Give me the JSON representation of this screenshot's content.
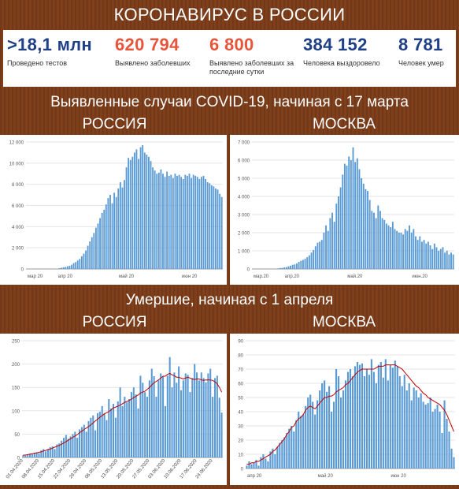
{
  "header": {
    "title": "КОРОНАВИРУС В РОССИИ"
  },
  "stats": [
    {
      "value": ">18,1 млн",
      "label": "Проведено тестов",
      "color": "#1f3f86"
    },
    {
      "value": "620 794",
      "label": "Выявлено заболевших",
      "color": "#e8553b"
    },
    {
      "value": "6 800",
      "label": "Выявлено заболевших за последние сутки",
      "color": "#e8553b"
    },
    {
      "value": "384 152",
      "label": "Человека выздоровело",
      "color": "#1f3f86"
    },
    {
      "value": "8 781",
      "label": "Человек умер",
      "color": "#1f3f86"
    }
  ],
  "section1": {
    "title": "Выявленные случаи COVID-19, начиная с 17 марта",
    "left": "РОССИЯ",
    "right": "МОСКВА"
  },
  "section2": {
    "title": "Умершие, начиная с 1 апреля",
    "left": "РОССИЯ",
    "right": "МОСКВА"
  },
  "colors": {
    "bar": "#5b9bd5",
    "line": "#c00000",
    "brown": "#7b3b18"
  },
  "chart_data": [
    {
      "id": "cases_russia",
      "type": "bar",
      "ylim": [
        0,
        12000
      ],
      "yticks": [
        "0",
        "2 000",
        "4 000",
        "6 000",
        "8 000",
        "10 000",
        "12 000"
      ],
      "xticks": [
        {
          "label": "мар 20",
          "i": 0
        },
        {
          "label": "апр 20",
          "i": 15
        },
        {
          "label": "май 20",
          "i": 45
        },
        {
          "label": "июн 20",
          "i": 76
        }
      ],
      "n": 97,
      "start": 0,
      "values": [
        0,
        0,
        0,
        0,
        0,
        0,
        0,
        0,
        0,
        0,
        0,
        0,
        0,
        0,
        0,
        0,
        70,
        120,
        160,
        190,
        250,
        300,
        400,
        550,
        650,
        800,
        950,
        1200,
        1450,
        1750,
        2200,
        2600,
        3000,
        3400,
        3900,
        4300,
        4800,
        5300,
        5600,
        6100,
        6700,
        7000,
        6200,
        7200,
        6800,
        7600,
        8200,
        7700,
        8400,
        9600,
        10500,
        10300,
        10600,
        11000,
        11300,
        10400,
        11500,
        11700,
        11000,
        10800,
        10600,
        10200,
        9600,
        9300,
        9000,
        9100,
        9400,
        9000,
        8700,
        9200,
        8800,
        8900,
        8600,
        9000,
        8800,
        8900,
        8700,
        8500,
        8900,
        8800,
        9000,
        8600,
        8900,
        8800,
        8700,
        8500,
        8700,
        8800,
        8500,
        8200,
        8100,
        7900,
        7800,
        7600,
        7500,
        7100,
        6800
      ]
    },
    {
      "id": "cases_moscow",
      "type": "bar",
      "ylim": [
        0,
        7000
      ],
      "yticks": [
        "0",
        "1 000",
        "2 000",
        "3 000",
        "4 000",
        "5 000",
        "6 000",
        "7 000"
      ],
      "xticks": [
        {
          "label": "мар.20",
          "i": 0
        },
        {
          "label": "апр.20",
          "i": 15
        },
        {
          "label": "май.20",
          "i": 45
        },
        {
          "label": "июн.20",
          "i": 76
        }
      ],
      "n": 97,
      "start": 0,
      "values": [
        0,
        0,
        0,
        0,
        0,
        0,
        0,
        0,
        0,
        0,
        0,
        0,
        30,
        50,
        60,
        80,
        100,
        140,
        180,
        230,
        250,
        300,
        390,
        450,
        500,
        560,
        650,
        750,
        900,
        1050,
        1250,
        1450,
        1500,
        1600,
        2000,
        2400,
        2100,
        2800,
        3100,
        2600,
        3600,
        4000,
        4500,
        5200,
        5800,
        5700,
        6200,
        6000,
        6700,
        5900,
        6100,
        5500,
        5000,
        4700,
        4400,
        4300,
        3800,
        3200,
        3100,
        2800,
        3500,
        3200,
        2800,
        2700,
        2500,
        2400,
        2300,
        2600,
        2200,
        2100,
        2000,
        2000,
        1900,
        2200,
        2100,
        2400,
        2000,
        2200,
        1800,
        1600,
        1800,
        1500,
        1600,
        1400,
        1500,
        1300,
        1100,
        1400,
        1200,
        1000,
        1100,
        1200,
        900,
        1000,
        800,
        900,
        800
      ]
    },
    {
      "id": "deaths_russia",
      "type": "bar+line",
      "ylim": [
        0,
        250
      ],
      "yticks": [
        "0",
        "50",
        "100",
        "150",
        "200",
        "250"
      ],
      "xticks": [
        "01.04.2020",
        "08.04.2020",
        "15.04.2020",
        "22.04.2020",
        "29.04.2020",
        "06.05.2020",
        "13.05.2020",
        "20.05.2020",
        "27.05.2020",
        "03.06.2020",
        "10.06.2020",
        "17.06.2020",
        "24.06.2020"
      ],
      "n": 89,
      "start": 0,
      "values": [
        5,
        4,
        6,
        8,
        7,
        10,
        11,
        9,
        15,
        18,
        13,
        17,
        22,
        24,
        18,
        28,
        30,
        36,
        42,
        48,
        40,
        45,
        50,
        55,
        42,
        60,
        65,
        70,
        55,
        78,
        85,
        90,
        58,
        95,
        98,
        110,
        95,
        80,
        125,
        105,
        115,
        85,
        120,
        150,
        110,
        130,
        118,
        125,
        140,
        150,
        135,
        105,
        175,
        160,
        140,
        130,
        165,
        190,
        174,
        130,
        165,
        180,
        174,
        110,
        175,
        215,
        150,
        182,
        160,
        195,
        144,
        165,
        180,
        177,
        140,
        170,
        200,
        182,
        165,
        182,
        170,
        161,
        180,
        190,
        130,
        170,
        175,
        128,
        96
      ],
      "trend": [
        5,
        5,
        6,
        7,
        8,
        9,
        10,
        11,
        12,
        14,
        15,
        17,
        18,
        20,
        22,
        24,
        26,
        28,
        31,
        34,
        37,
        40,
        43,
        46,
        49,
        53,
        56,
        60,
        63,
        66,
        70,
        74,
        78,
        82,
        86,
        90,
        93,
        96,
        98,
        102,
        106,
        108,
        110,
        112,
        115,
        118,
        120,
        122,
        125,
        128,
        131,
        134,
        138,
        140,
        142,
        146,
        150,
        155,
        160,
        163,
        166,
        170,
        174,
        174,
        178,
        180,
        177,
        175,
        172,
        172,
        170,
        168,
        170,
        172,
        170,
        168,
        167,
        168,
        168,
        166,
        165,
        166,
        166,
        166,
        165,
        162,
        158,
        150,
        140
      ]
    },
    {
      "id": "deaths_moscow",
      "type": "bar+line",
      "ylim": [
        0,
        90
      ],
      "yticks": [
        "0",
        "10",
        "20",
        "30",
        "40",
        "50",
        "60",
        "70",
        "80",
        "90"
      ],
      "xticks": [
        {
          "label": "апр 20",
          "i": 0
        },
        {
          "label": "май 20",
          "i": 30
        },
        {
          "label": "июн 20",
          "i": 61
        }
      ],
      "n": 89,
      "start": 0,
      "values": [
        2,
        5,
        3,
        4,
        6,
        2,
        8,
        10,
        7,
        5,
        12,
        14,
        10,
        15,
        18,
        20,
        22,
        25,
        28,
        30,
        26,
        34,
        40,
        37,
        38,
        44,
        50,
        52,
        47,
        38,
        48,
        55,
        60,
        62,
        54,
        58,
        40,
        47,
        70,
        65,
        50,
        55,
        62,
        68,
        70,
        65,
        72,
        75,
        73,
        74,
        65,
        70,
        66,
        77,
        68,
        60,
        73,
        75,
        64,
        77,
        62,
        73,
        71,
        76,
        72,
        65,
        58,
        66,
        55,
        60,
        48,
        57,
        55,
        50,
        53,
        47,
        45,
        46,
        50,
        40,
        42,
        45,
        40,
        25,
        48,
        35,
        26,
        14,
        8
      ],
      "trend": [
        3,
        3,
        4,
        4,
        5,
        5,
        6,
        7,
        8,
        9,
        10,
        12,
        13,
        15,
        17,
        19,
        21,
        24,
        26,
        29,
        30,
        33,
        35,
        36,
        38,
        41,
        43,
        44,
        43,
        42,
        44,
        46,
        48,
        50,
        50,
        51,
        51,
        52,
        54,
        55,
        56,
        57,
        59,
        60,
        62,
        64,
        66,
        68,
        69,
        70,
        70,
        70,
        70,
        70,
        70,
        71,
        72,
        72,
        72,
        73,
        73,
        73,
        73,
        73,
        72,
        71,
        70,
        68,
        66,
        64,
        62,
        60,
        58,
        57,
        55,
        53,
        52,
        50,
        49,
        48,
        47,
        46,
        45,
        43,
        41,
        38,
        34,
        30,
        26
      ]
    }
  ]
}
